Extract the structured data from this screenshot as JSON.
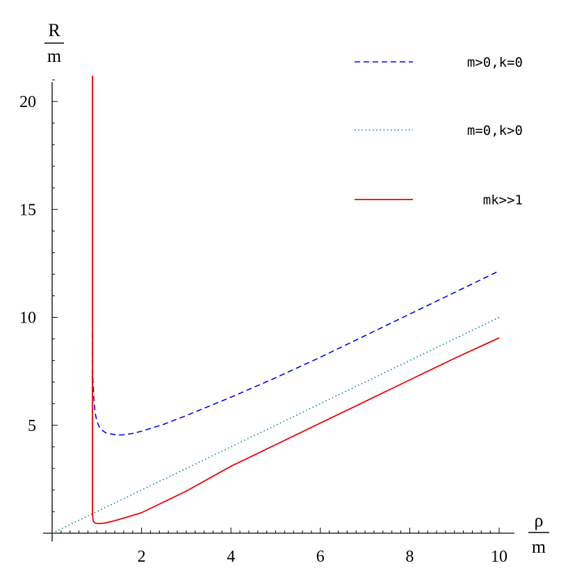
{
  "chart_data": {
    "type": "line",
    "xlabel": {
      "numerator": "ρ",
      "denominator": "m"
    },
    "ylabel": {
      "numerator": "R",
      "denominator": "m"
    },
    "xlim": [
      0,
      10.2
    ],
    "ylim": [
      0,
      21.2
    ],
    "xticks_major": [
      2,
      4,
      6,
      8,
      10
    ],
    "yticks_major": [
      5,
      10,
      15,
      20
    ],
    "grid": false,
    "legend_position": "top-right",
    "series": [
      {
        "name": "m>0,k=0",
        "color": "#0000ee",
        "style": "dashed",
        "points": [
          [
            0.9,
            9.3
          ],
          [
            0.9,
            8.0
          ],
          [
            0.91,
            7.2
          ],
          [
            0.93,
            6.3
          ],
          [
            0.96,
            5.6
          ],
          [
            1.0,
            5.2
          ],
          [
            1.05,
            4.95
          ],
          [
            1.1,
            4.8
          ],
          [
            1.2,
            4.65
          ],
          [
            1.3,
            4.6
          ],
          [
            1.4,
            4.57
          ],
          [
            1.5,
            4.55
          ],
          [
            1.6,
            4.56
          ],
          [
            1.8,
            4.62
          ],
          [
            2.0,
            4.72
          ],
          [
            2.5,
            5.05
          ],
          [
            3.0,
            5.45
          ],
          [
            4.0,
            6.3
          ],
          [
            5.0,
            7.2
          ],
          [
            6.0,
            8.15
          ],
          [
            7.0,
            9.15
          ],
          [
            8.0,
            10.15
          ],
          [
            9.0,
            11.15
          ],
          [
            10.0,
            12.15
          ]
        ]
      },
      {
        "name": "m=0,k>0",
        "color": "#009944",
        "style": "dotted",
        "points": [
          [
            0,
            0
          ],
          [
            10,
            10
          ]
        ]
      },
      {
        "name": "mk>>1",
        "color": "#ee0000",
        "style": "solid",
        "points": [
          [
            0.9,
            21.2
          ],
          [
            0.9,
            2.0
          ],
          [
            0.9,
            0.9
          ],
          [
            0.92,
            0.55
          ],
          [
            0.96,
            0.47
          ],
          [
            1.02,
            0.45
          ],
          [
            1.1,
            0.45
          ],
          [
            1.2,
            0.48
          ],
          [
            1.4,
            0.58
          ],
          [
            1.7,
            0.76
          ],
          [
            2.0,
            0.95
          ],
          [
            3.0,
            1.95
          ],
          [
            4.0,
            3.1
          ],
          [
            5.0,
            4.1
          ],
          [
            6.0,
            5.1
          ],
          [
            7.0,
            6.1
          ],
          [
            8.0,
            7.1
          ],
          [
            9.0,
            8.1
          ],
          [
            10.0,
            9.05
          ]
        ]
      }
    ]
  }
}
